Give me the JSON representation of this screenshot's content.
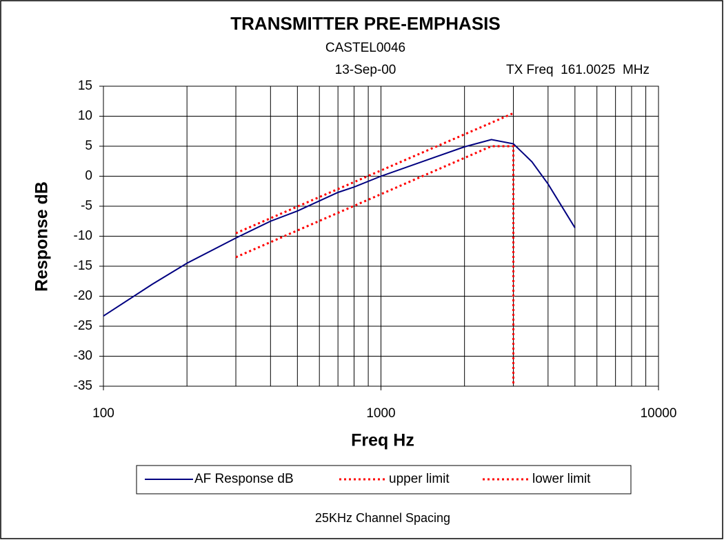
{
  "chart_data": {
    "type": "line",
    "title": "TRANSMITTER PRE-EMPHASIS",
    "subtitle": "CASTEL0046",
    "date": "13-Sep-00",
    "annotation": "TX Freq  161.0025  MHz",
    "footer": "25KHz Channel Spacing",
    "x_label": "Freq Hz",
    "y_label": "Response dB",
    "log_x": true,
    "xlim": [
      100,
      10000
    ],
    "xticks": [
      100,
      1000,
      10000
    ],
    "xgrid": [
      100,
      200,
      300,
      400,
      500,
      600,
      700,
      800,
      900,
      1000,
      2000,
      3000,
      4000,
      5000,
      6000,
      7000,
      8000,
      9000,
      10000
    ],
    "ylim": [
      -35,
      15
    ],
    "yticks": [
      -35,
      -30,
      -25,
      -20,
      -15,
      -10,
      -5,
      0,
      5,
      10,
      15
    ],
    "grid": true,
    "legend": "bottom",
    "series": [
      {
        "name": "AF Response dB",
        "color": "#000080",
        "style": "solid",
        "x": [
          100,
          150,
          200,
          300,
          400,
          500,
          700,
          800,
          1000,
          2000,
          2500,
          3000,
          3500,
          4000,
          5000
        ],
        "values": [
          -23.3,
          -18,
          -14.5,
          -10.3,
          -7.5,
          -5.8,
          -2.7,
          -1.8,
          0,
          4.9,
          6.1,
          5.4,
          2.4,
          -1.3,
          -8.6
        ]
      },
      {
        "name": "upper limit",
        "color": "#ff0000",
        "style": "dotted",
        "x": [
          300,
          3000
        ],
        "values": [
          -9.5,
          10.5
        ]
      },
      {
        "name": "lower limit",
        "color": "#ff0000",
        "style": "dotted",
        "x": [
          300,
          2500,
          3000,
          3000
        ],
        "values": [
          -13.5,
          5,
          5,
          -35
        ]
      }
    ]
  }
}
